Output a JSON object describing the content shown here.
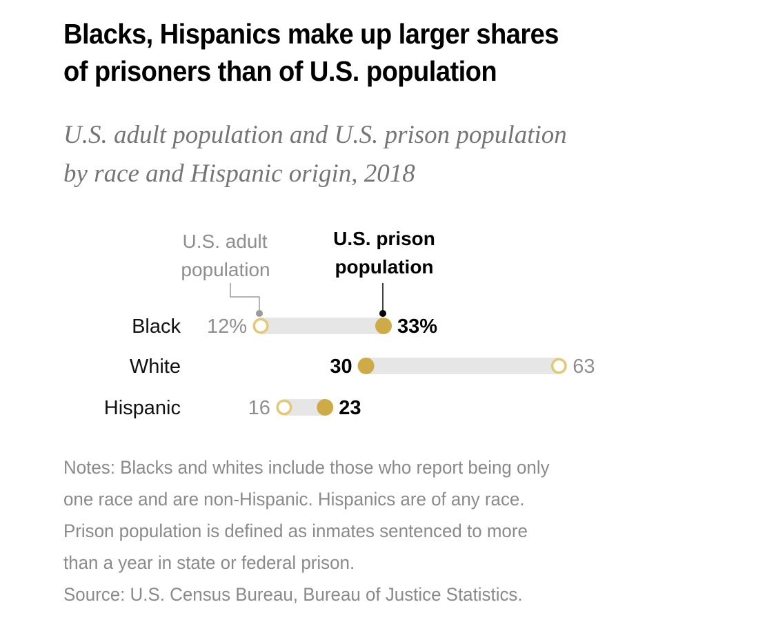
{
  "title": "Blacks, Hispanics make up larger shares of prisoners than of U.S. population",
  "title_lines": [
    "Blacks, Hispanics make up larger shares",
    "of prisoners than of U.S. population"
  ],
  "subtitle_lines": [
    "U.S. adult population and U.S. prison population",
    "by race and Hispanic origin, 2018"
  ],
  "notes_lines": [
    "Notes: Blacks and whites include those who report being only",
    "one race and are non-Hispanic. Hispanics are of any race.",
    "Prison population is defined as inmates sentenced to more",
    "than a year in state or federal prison.",
    "Source: U.S. Census Bureau, Bureau of Justice Statistics."
  ],
  "colors": {
    "prison_dot": "#cfab48",
    "adult_ring": "#e3c878",
    "bar": "#e6e6e6",
    "adult_text": "#8e8e8e",
    "prison_text": "#000000"
  },
  "chart_data": {
    "type": "dot-range",
    "title": "Blacks, Hispanics make up larger shares of prisoners than of U.S. population",
    "subtitle": "U.S. adult population and U.S. prison population by race and Hispanic origin, 2018",
    "unit": "%",
    "categories": [
      "Black",
      "White",
      "Hispanic"
    ],
    "series": [
      {
        "name": "U.S. adult population",
        "label_lines": [
          "U.S. adult",
          "population"
        ],
        "marker": "open-circle",
        "values": [
          12,
          63,
          16
        ],
        "labels": [
          "12%",
          "63",
          "16"
        ]
      },
      {
        "name": "U.S. prison population",
        "label_lines": [
          "U.S. prison",
          "population"
        ],
        "marker": "filled-circle",
        "values": [
          33,
          30,
          23
        ],
        "labels": [
          "33%",
          "30",
          "23"
        ]
      }
    ],
    "legend": "inline-annotations-top",
    "grid": false,
    "xaxis_visible": false
  }
}
